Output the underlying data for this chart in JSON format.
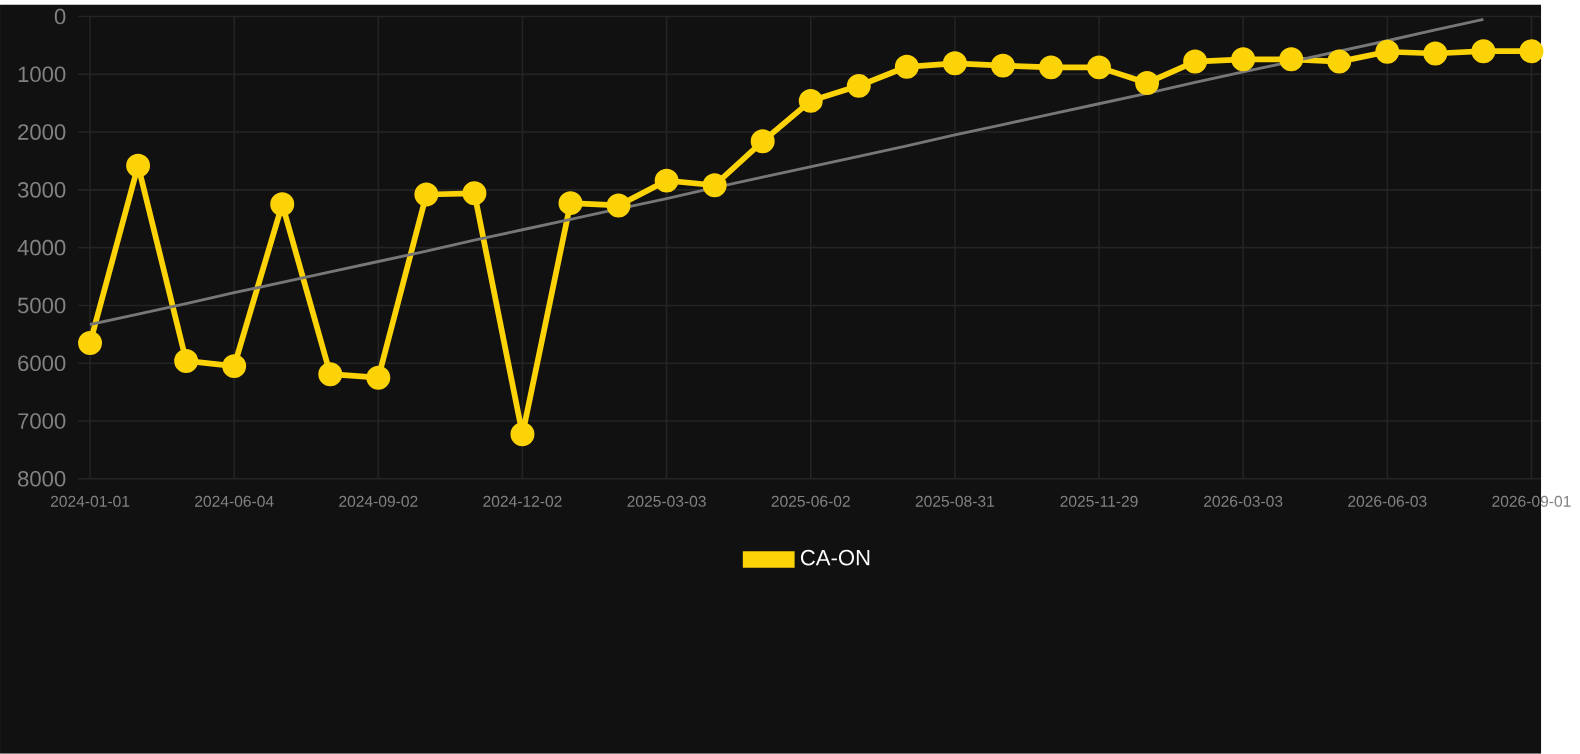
{
  "chart_data": {
    "type": "line",
    "categories": [
      "2024-01-01",
      null,
      null,
      "2024-06-04",
      null,
      null,
      "2024-09-02",
      null,
      null,
      "2024-12-02",
      null,
      null,
      "2025-03-03",
      null,
      null,
      "2025-06-02",
      null,
      null,
      "2025-08-31",
      null,
      null,
      "2025-11-29",
      null,
      null,
      "2026-03-03",
      null,
      null,
      "2026-06-03",
      null,
      null,
      "2026-09-01"
    ],
    "series": [
      {
        "name": "CA-ON",
        "color": "#fcd307",
        "values": [
          5650,
          2580,
          5960,
          6050,
          3250,
          6190,
          6250,
          3080,
          3060,
          7230,
          3230,
          3270,
          2840,
          2920,
          2160,
          1460,
          1200,
          870,
          810,
          850,
          880,
          880,
          1150,
          780,
          740,
          740,
          780,
          610,
          640,
          600,
          600
        ]
      },
      {
        "type": "line",
        "marker": "none",
        "color": "#777777",
        "values": [
          5330,
          5150,
          4970,
          4780,
          4600,
          4420,
          4240,
          4060,
          3870,
          3690,
          3510,
          3330,
          3150,
          2960,
          2780,
          2600,
          2420,
          2240,
          2050,
          1870,
          1690,
          1510,
          1330,
          1140,
          960,
          780,
          600,
          420,
          230,
          50,
          null
        ]
      }
    ],
    "ylim": [
      8000,
      0
    ],
    "yticks": [
      0,
      1000,
      2000,
      3000,
      4000,
      5000,
      6000,
      7000,
      8000
    ],
    "grid": true,
    "legend": "bottom",
    "marker": "circle",
    "line_style": "solid"
  }
}
